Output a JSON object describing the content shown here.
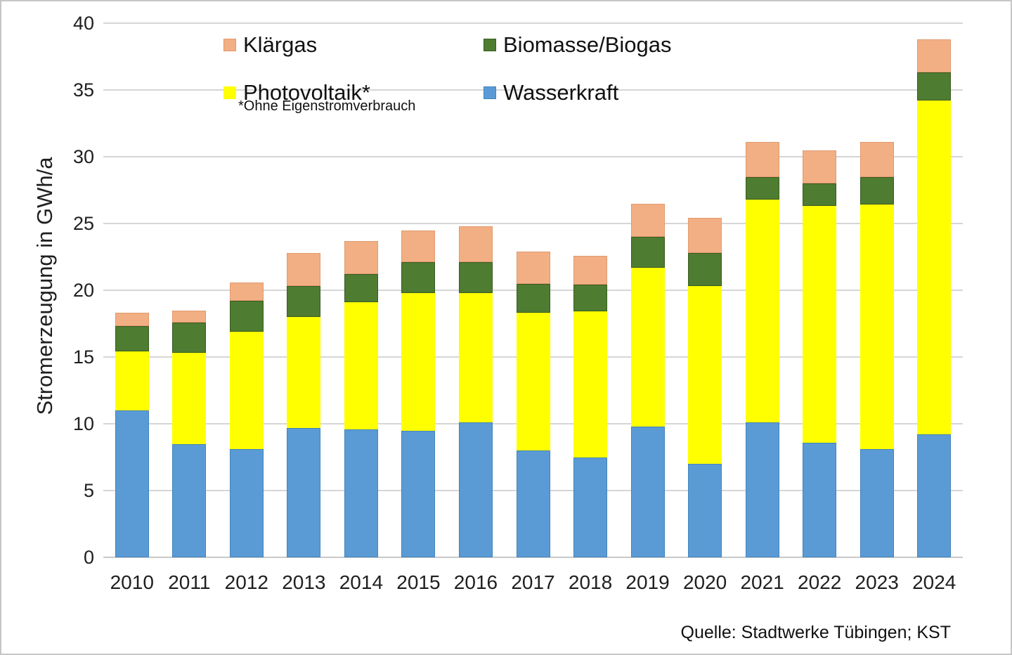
{
  "figure": {
    "source_note": "Quelle: Stadtwerke Tübingen; KST"
  },
  "chart_data": {
    "type": "bar",
    "stacked": true,
    "title": "",
    "xlabel": "",
    "ylabel": "Stromerzeugung in GWh/a",
    "ylim": [
      0,
      40
    ],
    "yticks": [
      0,
      5,
      10,
      15,
      20,
      25,
      30,
      35,
      40
    ],
    "grid": true,
    "categories": [
      "2010",
      "2011",
      "2012",
      "2013",
      "2014",
      "2015",
      "2016",
      "2017",
      "2018",
      "2019",
      "2020",
      "2021",
      "2022",
      "2023",
      "2024"
    ],
    "series": [
      {
        "name": "Wasserkraft",
        "color": "#5b9bd5",
        "border_color": "#4183bd",
        "values": [
          11.0,
          8.5,
          8.1,
          9.7,
          9.6,
          9.5,
          10.1,
          8.0,
          7.5,
          9.8,
          7.0,
          10.1,
          8.6,
          8.1,
          9.2
        ]
      },
      {
        "name": "Photovoltaik*",
        "color": "#ffff00",
        "border_color": "#ffff00",
        "values": [
          4.4,
          6.8,
          8.8,
          8.3,
          9.5,
          10.3,
          9.7,
          10.3,
          10.9,
          11.9,
          13.3,
          16.7,
          17.7,
          18.3,
          25.0
        ]
      },
      {
        "name": "Biomasse/Biogas",
        "color": "#4e7c31",
        "border_color": "#395c23",
        "values": [
          1.9,
          2.3,
          2.3,
          2.3,
          2.1,
          2.3,
          2.3,
          2.2,
          2.0,
          2.3,
          2.5,
          1.7,
          1.7,
          2.1,
          2.1
        ]
      },
      {
        "name": "Klärgas",
        "color": "#f2af84",
        "border_color": "#e09a6d",
        "values": [
          1.0,
          0.9,
          1.4,
          2.5,
          2.5,
          2.4,
          2.7,
          2.4,
          2.2,
          2.5,
          2.6,
          2.6,
          2.5,
          2.6,
          2.5
        ]
      }
    ],
    "legend": {
      "position": "top-inside",
      "rows": [
        [
          "Klärgas",
          "Biomasse/Biogas"
        ],
        [
          "Photovoltaik*",
          "Wasserkraft"
        ]
      ],
      "footnote": "*Ohne Eigenstromverbrauch"
    }
  }
}
